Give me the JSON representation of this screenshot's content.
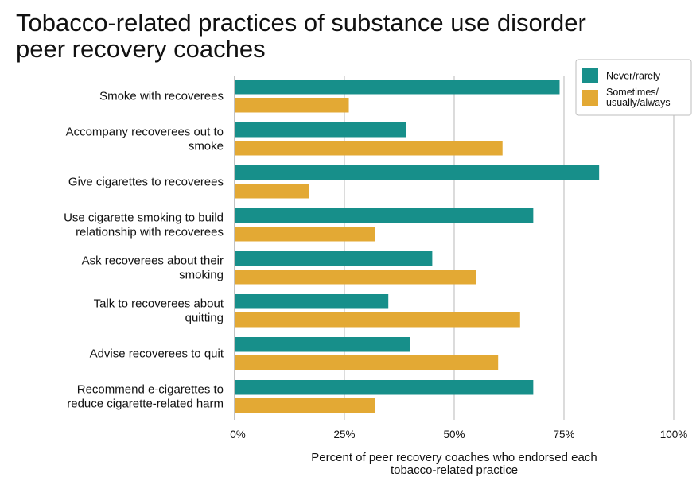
{
  "title": [
    "Tobacco-related practices of substance use disorder",
    "peer recovery coaches"
  ],
  "chart_data": {
    "type": "bar",
    "orientation": "horizontal",
    "title": "Tobacco-related practices of substance use disorder peer recovery coaches",
    "categories": [
      [
        "Smoke with recoverees"
      ],
      [
        "Accompany recoverees out to",
        "smoke"
      ],
      [
        "Give cigarettes to recoverees"
      ],
      [
        "Use cigarette smoking to build",
        "relationship with recoverees"
      ],
      [
        "Ask recoverees about their",
        "smoking"
      ],
      [
        "Talk to recoverees about",
        "quitting"
      ],
      [
        "Advise recoverees to quit"
      ],
      [
        "Recommend e-cigarettes to",
        "reduce cigarette-related harm"
      ]
    ],
    "series": [
      {
        "name": "Never/rarely",
        "legend_lines": [
          "Never/rarely"
        ],
        "color": "#178F8A",
        "values": [
          74,
          39,
          83,
          68,
          45,
          35,
          40,
          68
        ]
      },
      {
        "name": "Sometimes/ usually/always",
        "legend_lines": [
          "Sometimes/",
          "usually/always"
        ],
        "color": "#E3A934",
        "values": [
          26,
          61,
          17,
          32,
          55,
          65,
          60,
          32
        ]
      }
    ],
    "xlim": [
      0,
      100
    ],
    "xticks": [
      "0%",
      "25%",
      "50%",
      "75%",
      "100%"
    ],
    "xlabel": [
      "Percent of peer recovery coaches who endorsed each",
      "tobacco-related practice"
    ],
    "ylabel": "",
    "grid": true,
    "legend": "top-right"
  }
}
